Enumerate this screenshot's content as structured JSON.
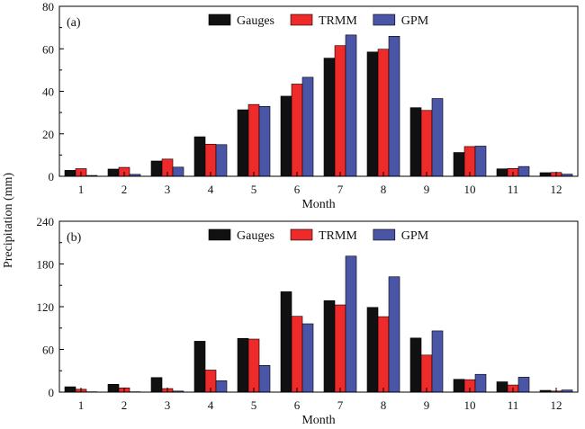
{
  "figure": {
    "ylabel": "Precipitation (mm)"
  },
  "chart_data": [
    {
      "type": "bar",
      "panel_label": "(a)",
      "xlabel": "Month",
      "categories": [
        "1",
        "2",
        "3",
        "4",
        "5",
        "6",
        "7",
        "8",
        "9",
        "10",
        "11",
        "12"
      ],
      "ylim": [
        0,
        80
      ],
      "yticks": [
        "0",
        "20",
        "40",
        "60",
        "80"
      ],
      "legend_position": "top-center",
      "grid": false,
      "series": [
        {
          "name": "Gauges",
          "color": "#111111",
          "values": [
            2.8,
            3.4,
            7.2,
            18.6,
            31.3,
            37.7,
            55.6,
            58.5,
            32.3,
            11.2,
            3.5,
            1.7
          ]
        },
        {
          "name": "TRMM",
          "color": "#ee2a2a",
          "values": [
            3.6,
            4.2,
            8.1,
            15.1,
            33.8,
            43.4,
            61.5,
            59.8,
            31.0,
            14.0,
            3.7,
            1.8
          ]
        },
        {
          "name": "GPM",
          "color": "#4a55a6",
          "values": [
            0.4,
            0.9,
            4.3,
            14.9,
            32.9,
            46.6,
            66.5,
            65.9,
            36.6,
            14.2,
            4.6,
            1.0
          ]
        }
      ]
    },
    {
      "type": "bar",
      "panel_label": "(b)",
      "xlabel": "Month",
      "categories": [
        "1",
        "2",
        "3",
        "4",
        "5",
        "6",
        "7",
        "8",
        "9",
        "10",
        "11",
        "12"
      ],
      "ylim": [
        0,
        240
      ],
      "yticks": [
        "0",
        "60",
        "120",
        "180",
        "240"
      ],
      "legend_position": "top-center",
      "grid": false,
      "series": [
        {
          "name": "Gauges",
          "color": "#111111",
          "values": [
            7.5,
            11.0,
            20.5,
            71.5,
            75.5,
            141.0,
            128.5,
            119.0,
            76.0,
            18.0,
            14.5,
            2.5
          ]
        },
        {
          "name": "TRMM",
          "color": "#ee2a2a",
          "values": [
            4.0,
            6.0,
            5.0,
            31.0,
            74.5,
            106.5,
            122.5,
            106.0,
            52.0,
            17.5,
            10.0,
            1.5
          ]
        },
        {
          "name": "GPM",
          "color": "#4a55a6",
          "values": [
            0.5,
            0.5,
            1.5,
            16.0,
            37.5,
            96.0,
            191.0,
            162.0,
            86.0,
            25.0,
            21.0,
            3.0
          ]
        }
      ]
    }
  ]
}
